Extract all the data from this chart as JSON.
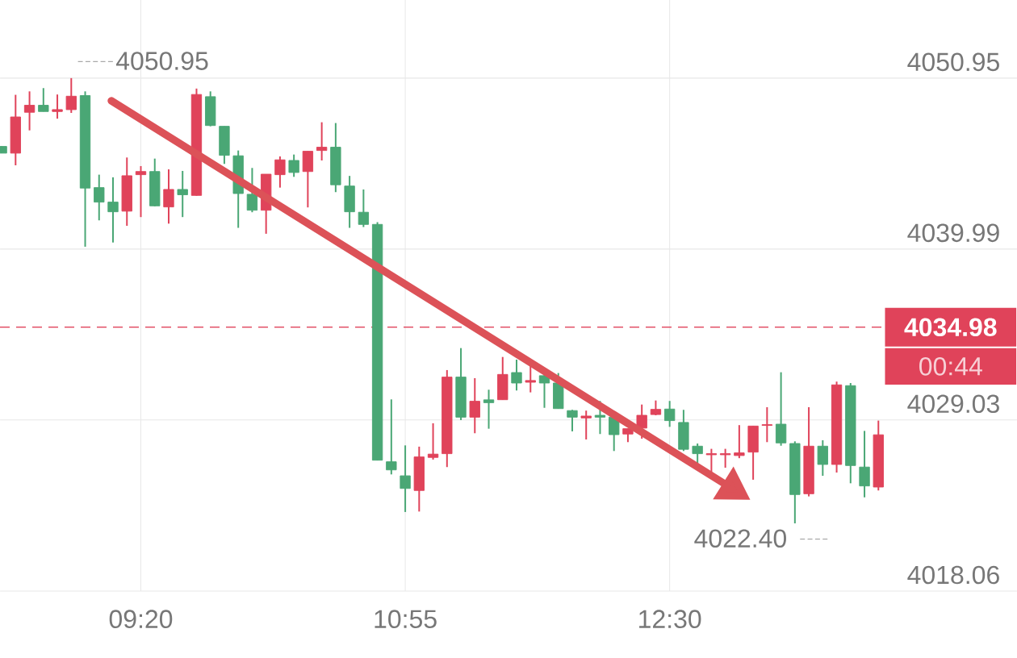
{
  "chart_data": {
    "type": "candlestick",
    "x": [
      8.5,
      8.5833,
      8.6667,
      8.75,
      8.8333,
      8.9167,
      9,
      9.0833,
      9.1667,
      9.25,
      9.3333,
      9.4167,
      9.5,
      9.5833,
      9.6667,
      9.75,
      9.8333,
      9.9167,
      10,
      10.0833,
      10.1667,
      10.25,
      10.3333,
      10.4167,
      10.5,
      10.5833,
      10.6667,
      10.75,
      10.8333,
      10.9167,
      11,
      11.0833,
      11.1667,
      11.25,
      11.3333,
      11.4167,
      11.5,
      11.5833,
      11.6667,
      11.75,
      11.8333,
      11.9167,
      12,
      12.0833,
      12.1667,
      12.25,
      12.3333,
      12.4167,
      12.5,
      12.5833,
      12.6667,
      12.75,
      12.8333,
      12.9167,
      13,
      13.0833,
      13.1667,
      13.25,
      13.3333,
      13.4167,
      13.5,
      13.5833,
      13.6667,
      13.75
    ],
    "ohlc": [
      [
        4046.14,
        4046.57,
        4046.14,
        4046.57
      ],
      [
        4048.46,
        4049.88,
        4045.36,
        4046.14
      ],
      [
        4049.21,
        4050.1,
        4047.6,
        4048.76
      ],
      [
        4048.81,
        4050.31,
        4048.81,
        4049.21
      ],
      [
        4048.93,
        4049.9,
        4048.35,
        4048.81
      ],
      [
        4049.79,
        4050.95,
        4048.72,
        4048.93
      ],
      [
        4043.9,
        4050.1,
        4040.14,
        4049.83
      ],
      [
        4043.0,
        4044.76,
        4041.83,
        4043.93
      ],
      [
        4042.38,
        4044.59,
        4040.41,
        4043.0
      ],
      [
        4044.69,
        4045.86,
        4041.48,
        4042.42
      ],
      [
        4044.96,
        4045.31,
        4042.04,
        4044.76
      ],
      [
        4042.76,
        4045.79,
        4042.73,
        4044.96
      ],
      [
        4043.81,
        4045.1,
        4041.62,
        4042.69
      ],
      [
        4043.47,
        4045.0,
        4042.04,
        4043.81
      ],
      [
        4049.9,
        4050.28,
        4043.41,
        4043.43
      ],
      [
        4047.91,
        4050.1,
        4047.86,
        4049.76
      ],
      [
        4046.0,
        4047.86,
        4045.45,
        4047.86
      ],
      [
        4043.55,
        4046.31,
        4041.35,
        4045.97
      ],
      [
        4042.48,
        4045.19,
        4042.35,
        4043.5
      ],
      [
        4044.79,
        4044.79,
        4040.97,
        4042.48
      ],
      [
        4045.71,
        4045.93,
        4043.93,
        4044.76
      ],
      [
        4044.9,
        4046.05,
        4044.62,
        4045.67
      ],
      [
        4046.26,
        4046.26,
        4042.66,
        4044.96
      ],
      [
        4046.52,
        4048.12,
        4045.67,
        4046.31
      ],
      [
        4044.11,
        4048.07,
        4043.64,
        4046.52
      ],
      [
        4042.38,
        4044.68,
        4041.35,
        4044.03
      ],
      [
        4041.57,
        4043.81,
        4041.4,
        4042.35
      ],
      [
        4026.45,
        4041.71,
        4026.45,
        4041.57
      ],
      [
        4025.83,
        4030.35,
        4025.54,
        4026.35
      ],
      [
        4024.64,
        4027.4,
        4023.13,
        4025.45
      ],
      [
        4026.66,
        4027.32,
        4023.16,
        4024.51
      ],
      [
        4026.84,
        4028.82,
        4026.49,
        4026.63
      ],
      [
        4031.78,
        4032.23,
        4026.01,
        4026.87
      ],
      [
        4029.21,
        4033.64,
        4029.02,
        4031.78
      ],
      [
        4030.23,
        4031.71,
        4028.18,
        4029.21
      ],
      [
        4030.14,
        4030.97,
        4028.47,
        4030.32
      ],
      [
        4031.95,
        4033.07,
        4030.33,
        4030.33
      ],
      [
        4031.4,
        4032.9,
        4030.92,
        4032.07
      ],
      [
        4031.56,
        4032.52,
        4030.8,
        4031.45
      ],
      [
        4031.4,
        4031.92,
        4029.81,
        4031.87
      ],
      [
        4029.76,
        4032.04,
        4029.76,
        4031.4
      ],
      [
        4029.21,
        4029.68,
        4028.3,
        4029.63
      ],
      [
        4029.28,
        4029.63,
        4027.78,
        4029.16
      ],
      [
        4029.21,
        4030.25,
        4028.13,
        4029.33
      ],
      [
        4028.09,
        4029.24,
        4027.04,
        4029.21
      ],
      [
        4028.47,
        4028.47,
        4027.61,
        4028.13
      ],
      [
        4029.33,
        4030.02,
        4027.83,
        4028.51
      ],
      [
        4029.71,
        4030.28,
        4029.33,
        4029.38
      ],
      [
        4028.99,
        4030.25,
        4028.59,
        4029.73
      ],
      [
        4027.15,
        4029.68,
        4027.04,
        4028.87
      ],
      [
        4026.87,
        4027.52,
        4026.23,
        4027.35
      ],
      [
        4026.87,
        4027.18,
        4025.71,
        4026.8
      ],
      [
        4026.87,
        4027.18,
        4025.97,
        4026.8
      ],
      [
        4026.92,
        4028.7,
        4026.58,
        4026.75
      ],
      [
        4028.64,
        4028.64,
        4025.2,
        4026.97
      ],
      [
        4028.73,
        4029.85,
        4027.61,
        4028.68
      ],
      [
        4027.56,
        4032.09,
        4027.38,
        4028.76
      ],
      [
        4024.25,
        4027.66,
        4022.4,
        4027.52
      ],
      [
        4027.35,
        4029.85,
        4024.13,
        4024.3
      ],
      [
        4026.18,
        4027.73,
        4025.45,
        4027.35
      ],
      [
        4031.28,
        4031.49,
        4025.66,
        4026.18
      ],
      [
        4026.11,
        4031.4,
        4024.97,
        4031.23
      ],
      [
        4024.8,
        4028.33,
        4024.07,
        4026.01
      ],
      [
        4028.08,
        4028.99,
        4024.51,
        4024.73
      ]
    ],
    "colors": [
      "#4aa775",
      "#e0435a",
      "#e0435a",
      "#4aa775",
      "#e0435a",
      "#e0435a",
      "#4aa775",
      "#4aa775",
      "#4aa775",
      "#e0435a",
      "#e0435a",
      "#4aa775",
      "#e0435a",
      "#4aa775",
      "#e0435a",
      "#4aa775",
      "#4aa775",
      "#4aa775",
      "#4aa775",
      "#e0435a",
      "#e0435a",
      "#4aa775",
      "#e0435a",
      "#e0435a",
      "#4aa775",
      "#4aa775",
      "#4aa775",
      "#4aa775",
      "#4aa775",
      "#4aa775",
      "#e0435a",
      "#e0435a",
      "#e0435a",
      "#4aa775",
      "#e0435a",
      "#4aa775",
      "#e0435a",
      "#4aa775",
      "#e0435a",
      "#4aa775",
      "#4aa775",
      "#4aa775",
      "#e0435a",
      "#4aa775",
      "#4aa775",
      "#e0435a",
      "#e0435a",
      "#e0435a",
      "#4aa775",
      "#4aa775",
      "#4aa775",
      "#e0435a",
      "#e0435a",
      "#e0435a",
      "#e0435a",
      "#e0435a",
      "#4aa775",
      "#4aa775",
      "#e0435a",
      "#4aa775",
      "#e0435a",
      "#4aa775",
      "#4aa775",
      "#e0435a"
    ],
    "xlim": [
      8.49,
      14.58
    ],
    "xticks": [
      {
        "value": 9.3333,
        "label": "09:20"
      },
      {
        "value": 10.9167,
        "label": "10:55"
      },
      {
        "value": 12.5,
        "label": "12:30"
      }
    ],
    "ylim": [
      4018.06,
      4055.96
    ],
    "yticks": [
      4018.06,
      4029.03,
      4039.99,
      4050.95
    ],
    "grid": true,
    "ref_lines": [
      {
        "axis": "y",
        "value": 4034.98,
        "label": "4034.98",
        "color": "#e0435a",
        "line_style": "dashed"
      }
    ],
    "annotations": [
      {
        "text": "4050.95",
        "x": 8.9167,
        "y": 4050.95
      },
      {
        "text": "4022.40",
        "x": 13.25,
        "y": 4022.4
      },
      "00:44"
    ]
  }
}
